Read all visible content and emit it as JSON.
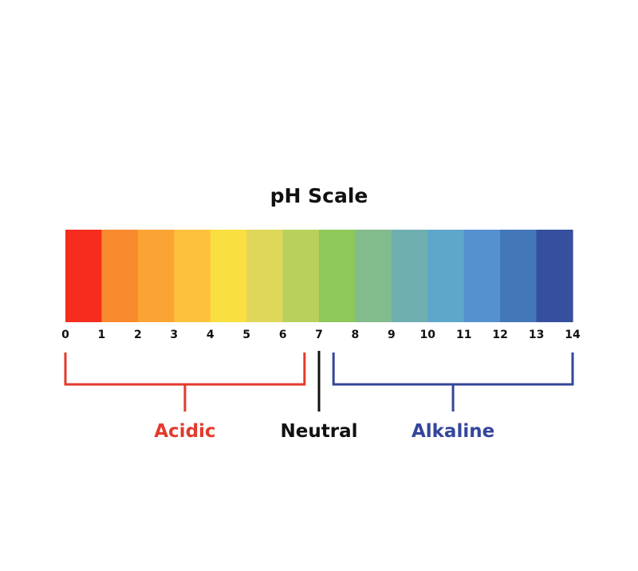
{
  "title": "pH Scale",
  "scale": {
    "min": 0,
    "max": 14,
    "ticks": [
      "0",
      "1",
      "2",
      "3",
      "4",
      "5",
      "6",
      "7",
      "8",
      "9",
      "10",
      "11",
      "12",
      "13",
      "14"
    ],
    "segment_colors": [
      "#f52c1e",
      "#f98a2e",
      "#fba436",
      "#fdc13d",
      "#fadf40",
      "#dfd759",
      "#b8d05c",
      "#8ec85a",
      "#82bc8c",
      "#6fafb0",
      "#5ea7cb",
      "#5591cf",
      "#4377b8",
      "#364f9e"
    ]
  },
  "groups": {
    "acidic": {
      "label": "Acidic",
      "from": 0,
      "to": 6.6,
      "color": "#e33a2d"
    },
    "neutral": {
      "label": "Neutral",
      "at": 7,
      "color": "#111111"
    },
    "alkaline": {
      "label": "Alkaline",
      "from": 7.4,
      "to": 14,
      "color": "#34469a"
    }
  }
}
